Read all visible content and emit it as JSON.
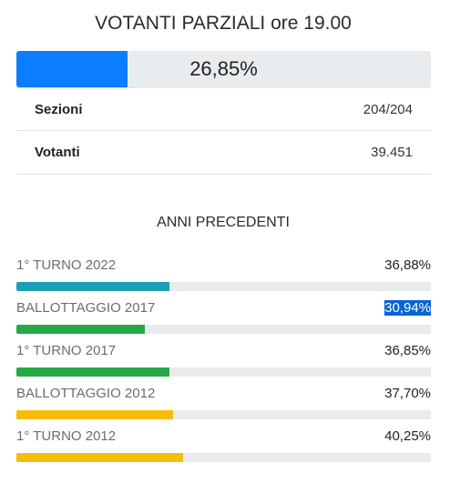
{
  "header": {
    "title": "VOTANTI PARZIALI ore 19.00"
  },
  "current": {
    "percentage_label": "26,85%",
    "percentage": 26.85,
    "bar_color": "#0d7dff"
  },
  "stats": [
    {
      "label": "Sezioni",
      "value": "204/204"
    },
    {
      "label": "Votanti",
      "value": "39.451"
    }
  ],
  "previous": {
    "title": "ANNI PRECEDENTI",
    "items": [
      {
        "label": "1° TURNO 2022",
        "value": "36,88%",
        "percentage": 36.88,
        "color": "#1a9fb6",
        "selected": false
      },
      {
        "label": "BALLOTTAGGIO 2017",
        "value": "30,94%",
        "percentage": 30.94,
        "color": "#27a847",
        "selected": true
      },
      {
        "label": "1° TURNO 2017",
        "value": "36,85%",
        "percentage": 36.85,
        "color": "#27a847",
        "selected": false
      },
      {
        "label": "BALLOTTAGGIO 2012",
        "value": "37,70%",
        "percentage": 37.7,
        "color": "#f5be0b",
        "selected": false
      },
      {
        "label": "1° TURNO 2012",
        "value": "40,25%",
        "percentage": 40.25,
        "color": "#f5be0b",
        "selected": false
      }
    ]
  }
}
